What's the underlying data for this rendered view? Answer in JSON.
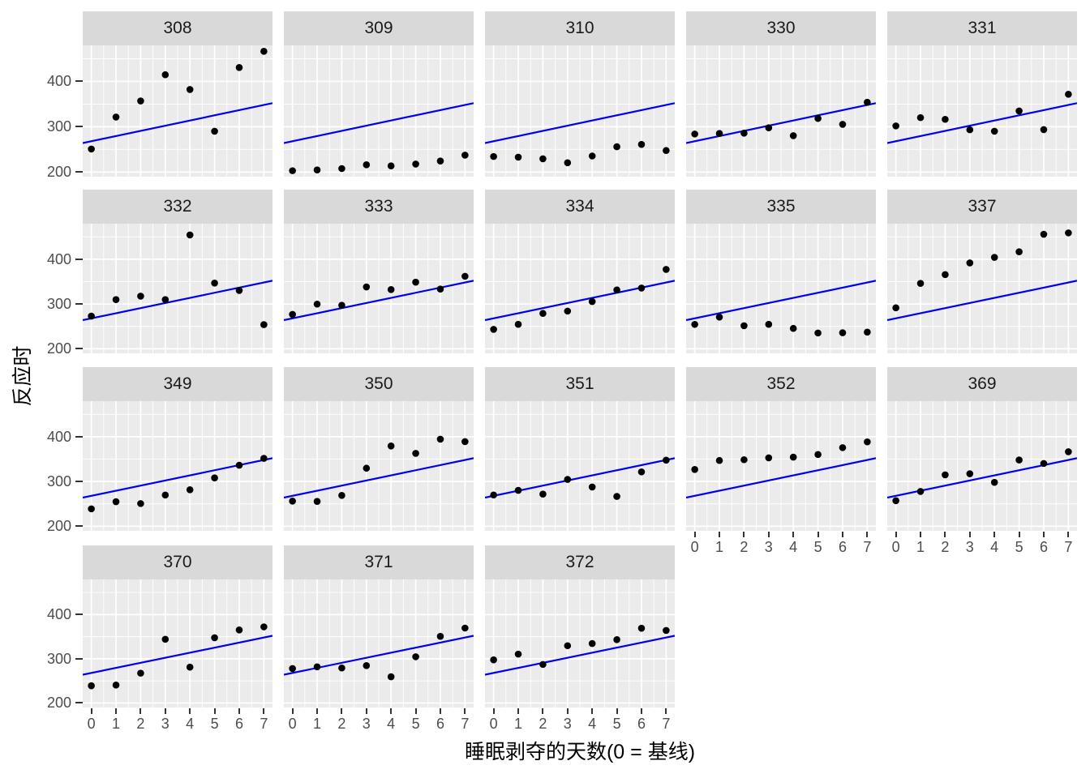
{
  "chart_data": {
    "type": "scatter",
    "title": "",
    "xlabel": "睡眠剥夺的天数(0 = 基线)",
    "ylabel": "反应时",
    "facet_variable": "Subject",
    "facet_layout": {
      "nrow": 4,
      "ncol": 5
    },
    "x": [
      0,
      1,
      2,
      3,
      4,
      5,
      6,
      7
    ],
    "x_tick_labels": [
      "0",
      "1",
      "2",
      "3",
      "4",
      "5",
      "6",
      "7"
    ],
    "y_tick_labels": [
      "400",
      "300",
      "200"
    ],
    "y_ticks": [
      400,
      300,
      200
    ],
    "y_minor_breaks": [
      250,
      350,
      450
    ],
    "x_minor_breaks": [
      0.5,
      1.5,
      2.5,
      3.5,
      4.5,
      5.5,
      6.5
    ],
    "xlim": [
      -0.35,
      7.35
    ],
    "ylim": [
      189.8,
      479.5
    ],
    "grid": "white major and minor gridlines on grey panel",
    "legend": "none",
    "fit_line": {
      "description": "same pooled linear fit drawn edge-to-edge in every facet",
      "intercept": 267.97,
      "slope": 11.44,
      "color": "#0000EE"
    },
    "facets": [
      {
        "subject": "308",
        "values": [
          250.8,
          321.4,
          356.9,
          414.7,
          382.2,
          290.1,
          430.6,
          466.4
        ]
      },
      {
        "subject": "309",
        "values": [
          203.0,
          204.7,
          207.7,
          216.0,
          213.6,
          217.7,
          224.3,
          237.3
        ]
      },
      {
        "subject": "310",
        "values": [
          234.3,
          232.8,
          229.3,
          220.5,
          235.4,
          255.8,
          261.0,
          247.5
        ]
      },
      {
        "subject": "330",
        "values": [
          283.9,
          285.1,
          285.8,
          297.6,
          280.2,
          318.3,
          305.3,
          354.0
        ]
      },
      {
        "subject": "331",
        "values": [
          301.8,
          320.1,
          316.3,
          293.3,
          290.1,
          334.8,
          293.7,
          371.6
        ]
      },
      {
        "subject": "332",
        "values": [
          273.0,
          309.8,
          317.5,
          310.0,
          454.2,
          346.8,
          330.3,
          253.9
        ]
      },
      {
        "subject": "333",
        "values": [
          276.8,
          299.8,
          297.2,
          338.2,
          332.3,
          348.8,
          333.4,
          362.0
        ]
      },
      {
        "subject": "334",
        "values": [
          243.4,
          254.7,
          279.0,
          284.2,
          305.5,
          331.5,
          335.7,
          377.3
        ]
      },
      {
        "subject": "335",
        "values": [
          254.5,
          270.8,
          251.5,
          254.6,
          245.5,
          235.3,
          235.8,
          237.2
        ]
      },
      {
        "subject": "337",
        "values": [
          291.6,
          346.1,
          365.7,
          391.8,
          404.3,
          416.7,
          455.9,
          458.9
        ]
      },
      {
        "subject": "349",
        "values": [
          238.9,
          254.9,
          250.7,
          269.8,
          281.6,
          308.1,
          336.3,
          351.7
        ]
      },
      {
        "subject": "350",
        "values": [
          256.2,
          255.5,
          268.9,
          329.7,
          379.4,
          362.9,
          394.5,
          389.1
        ]
      },
      {
        "subject": "351",
        "values": [
          269.9,
          280.2,
          271.8,
          304.6,
          287.7,
          266.6,
          321.5,
          347.6
        ]
      },
      {
        "subject": "352",
        "values": [
          326.9,
          346.9,
          348.7,
          352.8,
          354.4,
          360.4,
          375.6,
          388.5
        ]
      },
      {
        "subject": "369",
        "values": [
          257.2,
          277.7,
          314.8,
          317.4,
          298.1,
          348.1,
          340.3,
          366.5
        ]
      },
      {
        "subject": "370",
        "values": [
          238.9,
          240.5,
          267.5,
          344.2,
          281.1,
          347.6,
          365.2,
          372.2
        ]
      },
      {
        "subject": "371",
        "values": [
          277.9,
          281.8,
          279.2,
          284.5,
          259.3,
          304.6,
          350.8,
          369.5
        ]
      },
      {
        "subject": "372",
        "values": [
          297.6,
          310.6,
          287.2,
          329.6,
          334.5,
          343.2,
          369.1,
          364.1
        ]
      }
    ],
    "colors": {
      "strip_fill": "#D9D9D9",
      "strip_text": "#1A1A1A",
      "panel_fill": "#EBEBEB",
      "gridline": "#FFFFFF",
      "point": "#000000",
      "line": "#0000EE",
      "axis_text": "#4D4D4D",
      "tick_mark": "#333333",
      "axis_title": "#000000",
      "background": "#FFFFFF"
    }
  }
}
